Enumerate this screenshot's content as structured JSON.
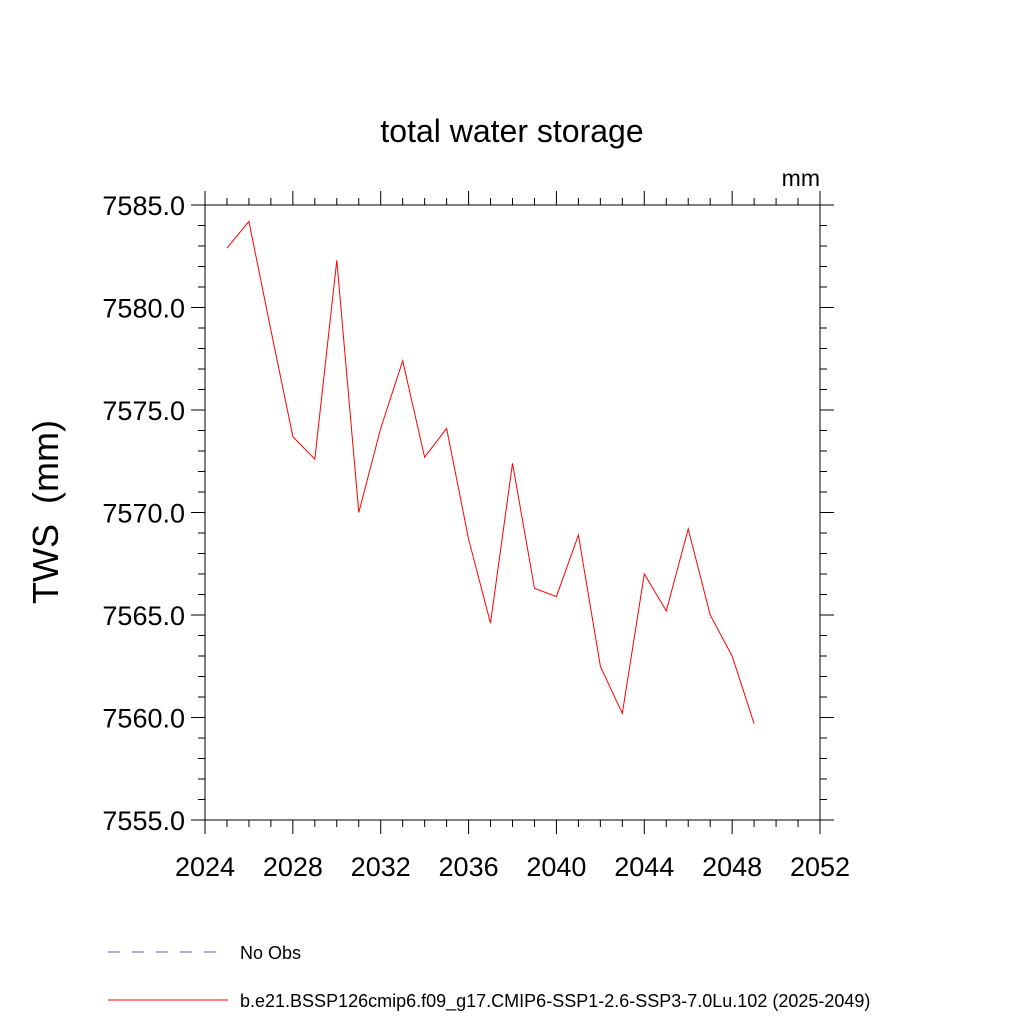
{
  "chart_data": {
    "type": "line",
    "title": "total water storage",
    "units": "mm",
    "xlabel": "",
    "ylabel": "TWS  (mm)",
    "xlim": [
      2024,
      2052
    ],
    "ylim": [
      7555,
      7585
    ],
    "x_ticks": [
      2024,
      2028,
      2032,
      2036,
      2040,
      2044,
      2048,
      2052
    ],
    "x_tick_labels": [
      "2024",
      "2028",
      "2032",
      "2036",
      "2040",
      "2044",
      "2048",
      "2052"
    ],
    "y_ticks": [
      7555,
      7560,
      7565,
      7570,
      7575,
      7580,
      7585
    ],
    "y_tick_labels": [
      "7555.0",
      "7560.0",
      "7565.0",
      "7570.0",
      "7575.0",
      "7580.0",
      "7585.0"
    ],
    "grid": false,
    "legend_position": "bottom-left, below plot",
    "series": [
      {
        "name": "No Obs",
        "color": "#6a5acd",
        "dash": "dashed",
        "x": [],
        "values": []
      },
      {
        "name": "b.e21.BSSP126cmip6.f09_g17.CMIP6-SSP1-2.6-SSP3-7.0Lu.102 (2025-2049)",
        "color": "#ff0000",
        "dash": "solid",
        "x": [
          2025,
          2026,
          2027,
          2028,
          2029,
          2030,
          2031,
          2032,
          2033,
          2034,
          2035,
          2036,
          2037,
          2038,
          2039,
          2040,
          2041,
          2042,
          2043,
          2044,
          2045,
          2046,
          2047,
          2048,
          2049
        ],
        "values": [
          7582.9,
          7584.2,
          7578.9,
          7573.7,
          7572.6,
          7582.3,
          7570.0,
          7574.1,
          7577.4,
          7572.7,
          7574.1,
          7568.7,
          7564.6,
          7572.4,
          7566.3,
          7565.9,
          7568.9,
          7562.5,
          7560.2,
          7567.0,
          7565.2,
          7569.2,
          7565.0,
          7563.0,
          7559.7
        ]
      }
    ]
  }
}
